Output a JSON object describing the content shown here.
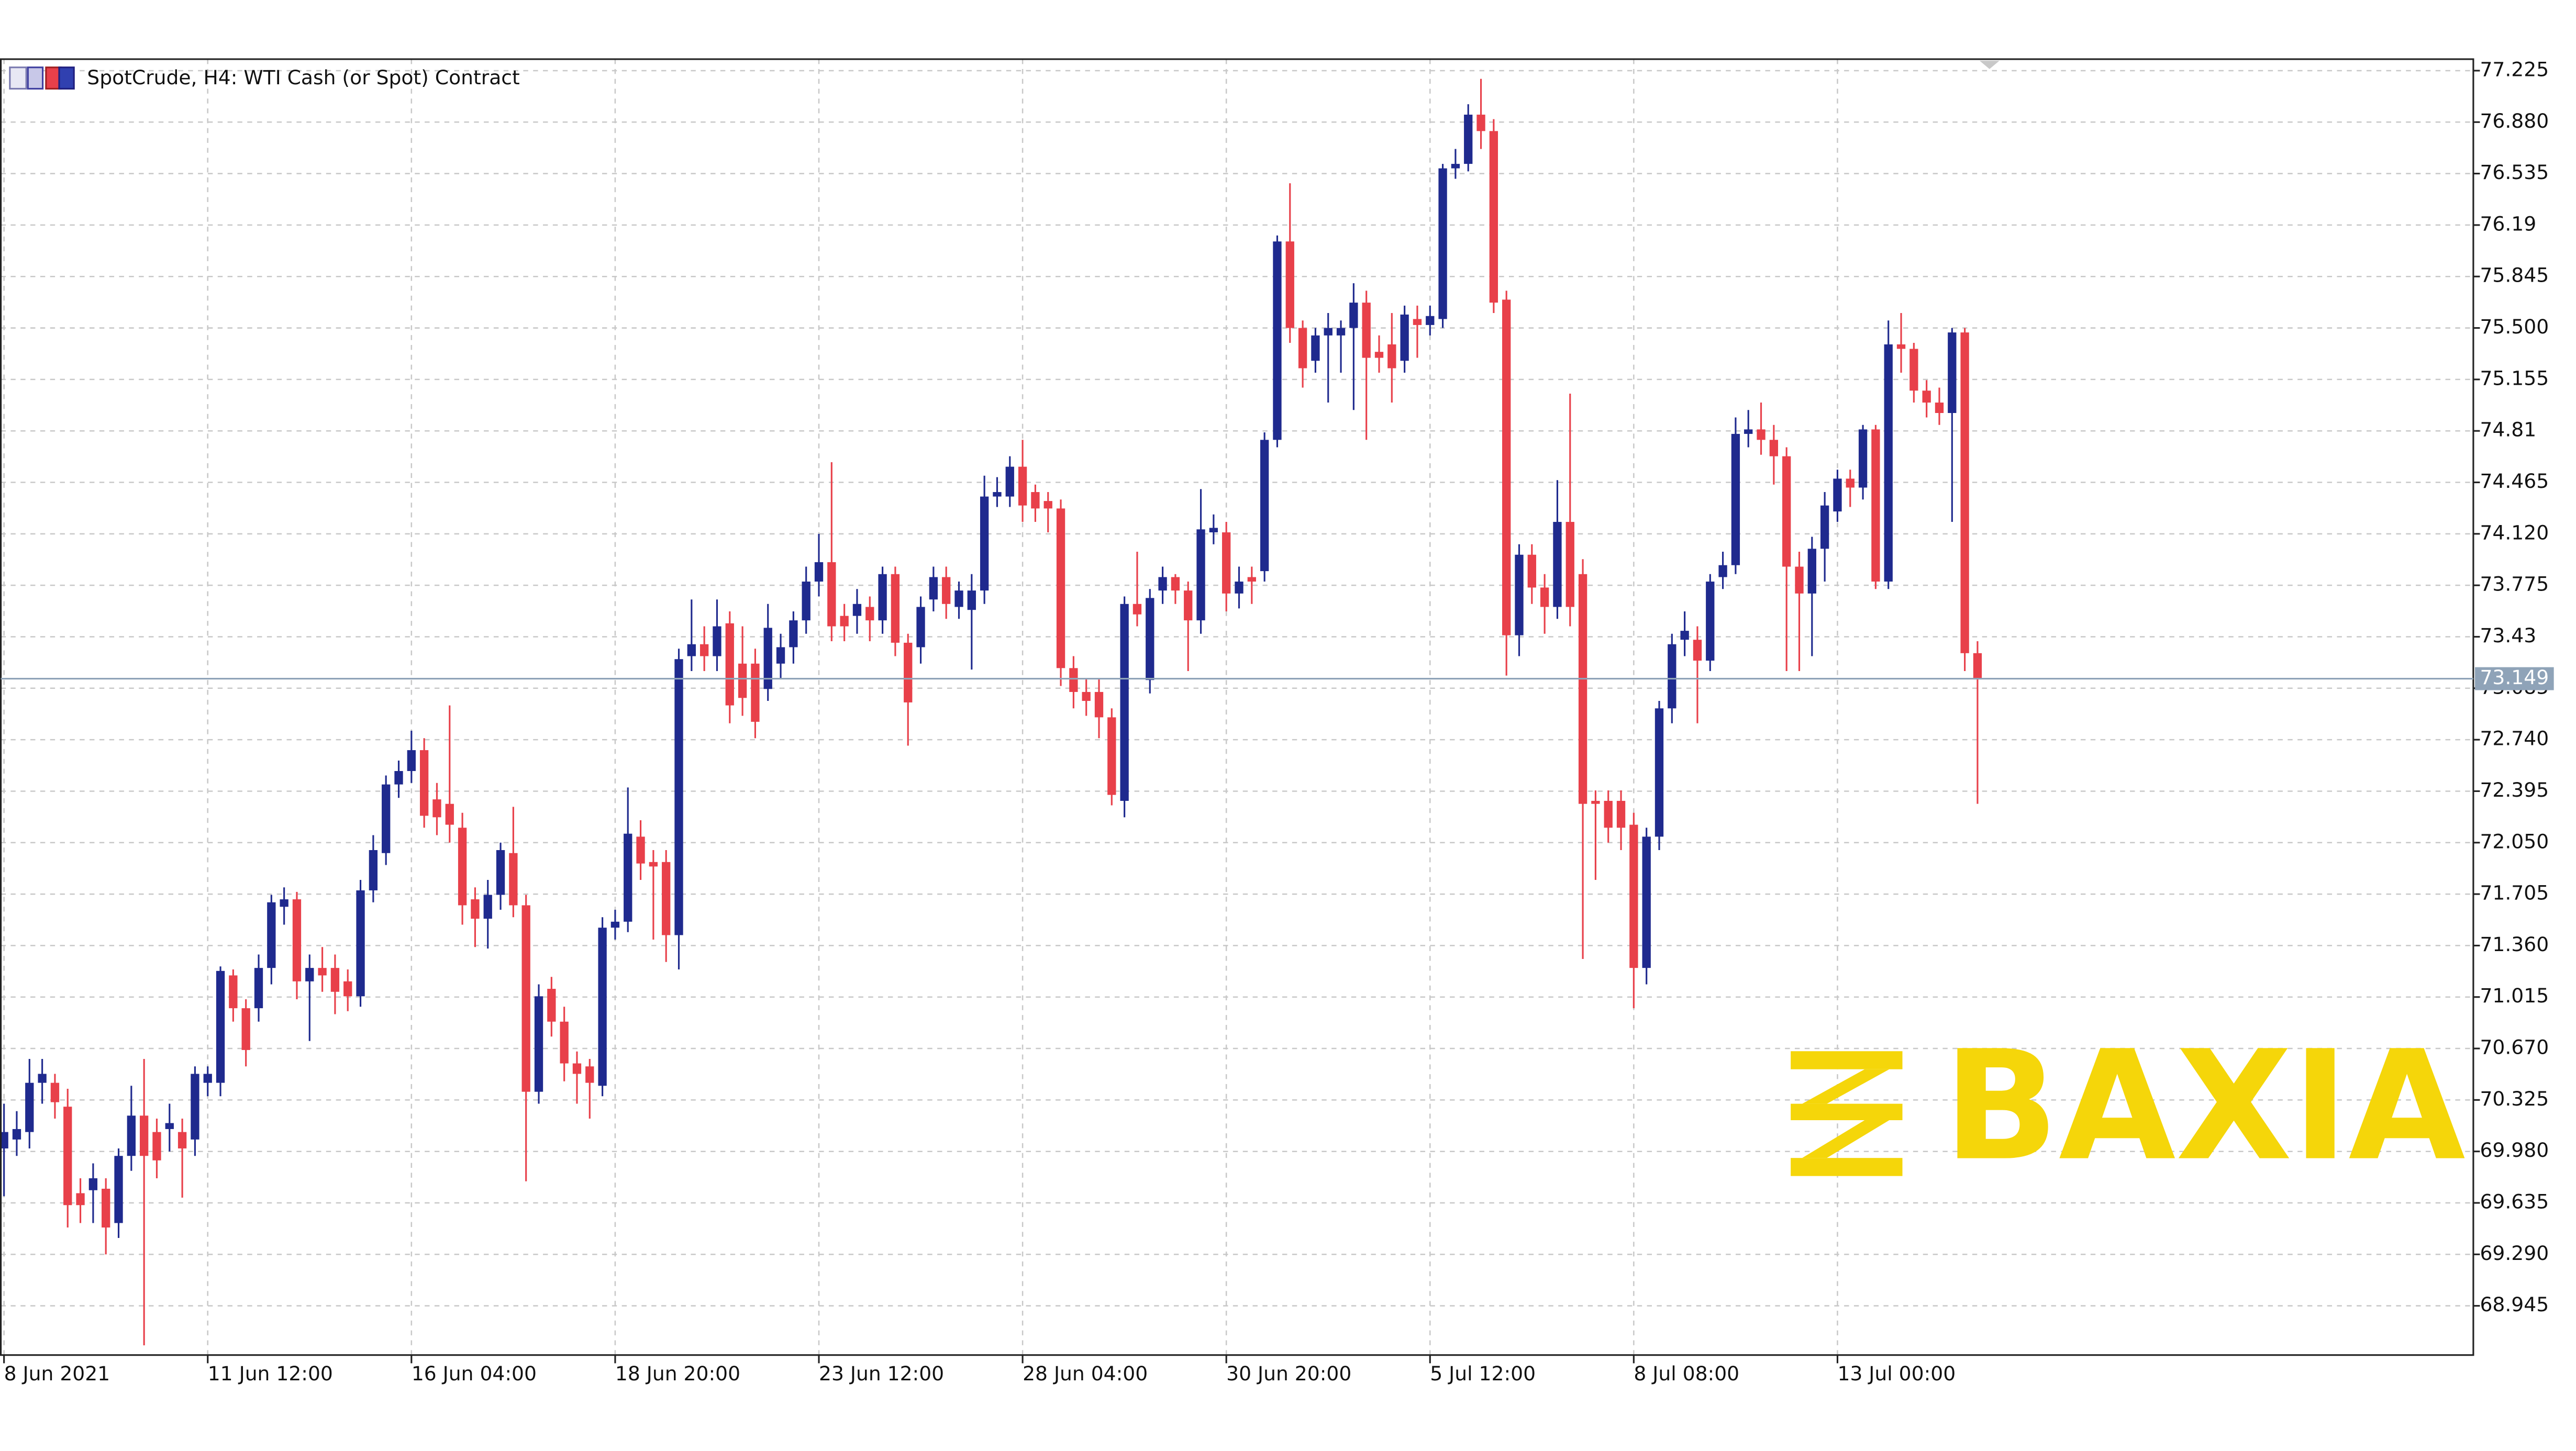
{
  "chart_data": {
    "type": "candlestick",
    "title": "SpotCrude, H4:  WTI Cash (or Spot) Contract",
    "watermark": "BAXIA",
    "up_color": "#1f2a8e",
    "down_color": "#e8404a",
    "grid": true,
    "current_price": 73.149,
    "xlim": [
      -0.25,
      193.94
    ],
    "xticks": [
      {
        "value": 0,
        "label": "8 Jun 2021"
      },
      {
        "value": 16,
        "label": "11 Jun 12:00"
      },
      {
        "value": 32,
        "label": "16 Jun 04:00"
      },
      {
        "value": 48,
        "label": "18 Jun 20:00"
      },
      {
        "value": 64,
        "label": "23 Jun 12:00"
      },
      {
        "value": 80,
        "label": "28 Jun 04:00"
      },
      {
        "value": 96,
        "label": "30 Jun 20:00"
      },
      {
        "value": 112,
        "label": "5 Jul 12:00"
      },
      {
        "value": 128,
        "label": "8 Jul 08:00"
      },
      {
        "value": 144,
        "label": "13 Jul 00:00"
      }
    ],
    "ylim": [
      68.615,
      77.302
    ],
    "yticks": [
      77.225,
      {
        "value": 76.88,
        "label": "76.880"
      },
      76.535,
      76.19,
      75.845,
      {
        "value": 75.5,
        "label": "75.500"
      },
      75.155,
      74.81,
      74.465,
      {
        "value": 74.12,
        "label": "74.120"
      },
      73.775,
      73.43,
      73.085,
      {
        "value": 72.74,
        "label": "72.740"
      },
      72.395,
      {
        "value": 72.05,
        "label": "72.050"
      },
      71.705,
      {
        "value": 71.36,
        "label": "71.360"
      },
      71.015,
      {
        "value": 70.67,
        "label": "70.670"
      },
      70.325,
      {
        "value": 69.98,
        "label": "69.980"
      },
      69.635,
      {
        "value": 69.29,
        "label": "69.290"
      },
      68.945
    ],
    "candles": [
      [
        70.0,
        70.3,
        69.68,
        70.11
      ],
      [
        70.06,
        70.25,
        69.95,
        70.13
      ],
      [
        70.11,
        70.6,
        70.0,
        70.44
      ],
      [
        70.44,
        70.6,
        70.3,
        70.5
      ],
      [
        70.44,
        70.5,
        70.2,
        70.31
      ],
      [
        70.28,
        70.4,
        69.47,
        69.62
      ],
      [
        69.7,
        69.8,
        69.5,
        69.62
      ],
      [
        69.72,
        69.9,
        69.5,
        69.8
      ],
      [
        69.73,
        69.8,
        69.29,
        69.47
      ],
      [
        69.5,
        70.0,
        69.4,
        69.95
      ],
      [
        69.95,
        70.42,
        69.85,
        70.22
      ],
      [
        70.22,
        70.6,
        68.68,
        69.95
      ],
      [
        70.11,
        70.2,
        69.8,
        69.92
      ],
      [
        70.13,
        70.3,
        69.98,
        70.17
      ],
      [
        70.11,
        70.2,
        69.67,
        70.0
      ],
      [
        70.06,
        70.55,
        69.95,
        70.5
      ],
      [
        70.44,
        70.55,
        70.35,
        70.5
      ],
      [
        70.44,
        71.22,
        70.35,
        71.19
      ],
      [
        71.16,
        71.2,
        70.85,
        70.94
      ],
      [
        70.94,
        71.0,
        70.55,
        70.66
      ],
      [
        70.94,
        71.3,
        70.85,
        71.21
      ],
      [
        71.21,
        71.7,
        71.1,
        71.65
      ],
      [
        71.62,
        71.75,
        71.5,
        71.67
      ],
      [
        71.67,
        71.72,
        71.0,
        71.12
      ],
      [
        71.12,
        71.3,
        70.72,
        71.21
      ],
      [
        71.21,
        71.35,
        71.05,
        71.16
      ],
      [
        71.21,
        71.3,
        70.9,
        71.05
      ],
      [
        71.12,
        71.2,
        70.92,
        71.02
      ],
      [
        71.02,
        71.8,
        70.95,
        71.73
      ],
      [
        71.73,
        72.1,
        71.65,
        72.0
      ],
      [
        71.98,
        72.5,
        71.9,
        72.44
      ],
      [
        72.44,
        72.6,
        72.35,
        72.53
      ],
      [
        72.53,
        72.8,
        72.45,
        72.67
      ],
      [
        72.67,
        72.75,
        72.15,
        72.23
      ],
      [
        72.34,
        72.45,
        72.1,
        72.22
      ],
      [
        72.31,
        72.97,
        72.05,
        72.17
      ],
      [
        72.15,
        72.25,
        71.5,
        71.63
      ],
      [
        71.67,
        71.75,
        71.35,
        71.54
      ],
      [
        71.54,
        71.8,
        71.34,
        71.7
      ],
      [
        71.7,
        72.05,
        71.6,
        72.0
      ],
      [
        71.98,
        72.29,
        71.55,
        71.63
      ],
      [
        71.63,
        71.7,
        69.78,
        70.38
      ],
      [
        70.38,
        71.1,
        70.3,
        71.02
      ],
      [
        71.07,
        71.15,
        70.75,
        70.85
      ],
      [
        70.85,
        70.95,
        70.45,
        70.57
      ],
      [
        70.57,
        70.65,
        70.3,
        70.5
      ],
      [
        70.55,
        70.6,
        70.2,
        70.44
      ],
      [
        70.42,
        71.55,
        70.35,
        71.48
      ],
      [
        71.48,
        71.6,
        71.4,
        71.52
      ],
      [
        71.52,
        72.42,
        71.45,
        72.11
      ],
      [
        72.09,
        72.2,
        71.8,
        71.91
      ],
      [
        71.92,
        72.0,
        71.4,
        71.89
      ],
      [
        71.92,
        72.0,
        71.25,
        71.43
      ],
      [
        71.43,
        73.35,
        71.2,
        73.28
      ],
      [
        73.3,
        73.68,
        73.2,
        73.38
      ],
      [
        73.38,
        73.5,
        73.2,
        73.3
      ],
      [
        73.3,
        73.68,
        73.2,
        73.5
      ],
      [
        73.52,
        73.6,
        72.85,
        72.97
      ],
      [
        73.25,
        73.5,
        72.9,
        73.02
      ],
      [
        73.25,
        73.35,
        72.75,
        72.86
      ],
      [
        73.08,
        73.65,
        73.0,
        73.49
      ],
      [
        73.25,
        73.45,
        73.15,
        73.36
      ],
      [
        73.36,
        73.6,
        73.25,
        73.54
      ],
      [
        73.54,
        73.9,
        73.45,
        73.8
      ],
      [
        73.8,
        74.12,
        73.7,
        73.93
      ],
      [
        73.93,
        74.6,
        73.4,
        73.5
      ],
      [
        73.57,
        73.65,
        73.4,
        73.5
      ],
      [
        73.57,
        73.75,
        73.45,
        73.65
      ],
      [
        73.63,
        73.7,
        73.4,
        73.54
      ],
      [
        73.54,
        73.9,
        73.45,
        73.85
      ],
      [
        73.85,
        73.9,
        73.3,
        73.39
      ],
      [
        73.39,
        73.45,
        72.7,
        72.99
      ],
      [
        73.36,
        73.7,
        73.25,
        73.63
      ],
      [
        73.68,
        73.9,
        73.6,
        73.83
      ],
      [
        73.83,
        73.9,
        73.55,
        73.65
      ],
      [
        73.63,
        73.8,
        73.55,
        73.74
      ],
      [
        73.61,
        73.85,
        73.21,
        73.74
      ],
      [
        73.74,
        74.51,
        73.65,
        74.37
      ],
      [
        74.37,
        74.5,
        74.3,
        74.4
      ],
      [
        74.37,
        74.64,
        74.3,
        74.57
      ],
      [
        74.57,
        74.75,
        74.2,
        74.31
      ],
      [
        74.4,
        74.45,
        74.2,
        74.29
      ],
      [
        74.34,
        74.4,
        74.13,
        74.29
      ],
      [
        74.29,
        74.35,
        73.1,
        73.22
      ],
      [
        73.22,
        73.3,
        72.95,
        73.06
      ],
      [
        73.06,
        73.15,
        72.9,
        73.0
      ],
      [
        73.06,
        73.15,
        72.75,
        72.89
      ],
      [
        72.89,
        72.95,
        72.3,
        72.37
      ],
      [
        72.33,
        73.7,
        72.22,
        73.65
      ],
      [
        73.65,
        74.0,
        73.5,
        73.58
      ],
      [
        73.14,
        73.75,
        73.05,
        73.69
      ],
      [
        73.74,
        73.9,
        73.65,
        73.83
      ],
      [
        73.83,
        73.85,
        73.65,
        73.74
      ],
      [
        73.74,
        73.8,
        73.2,
        73.54
      ],
      [
        73.54,
        74.42,
        73.45,
        74.15
      ],
      [
        74.13,
        74.25,
        74.05,
        74.16
      ],
      [
        74.13,
        74.2,
        73.6,
        73.72
      ],
      [
        73.72,
        73.9,
        73.62,
        73.8
      ],
      [
        73.83,
        73.9,
        73.65,
        73.8
      ],
      [
        73.87,
        74.8,
        73.8,
        74.75
      ],
      [
        74.75,
        76.12,
        74.7,
        76.08
      ],
      [
        76.08,
        76.47,
        75.4,
        75.5
      ],
      [
        75.5,
        75.55,
        75.1,
        75.23
      ],
      [
        75.28,
        75.5,
        75.2,
        75.45
      ],
      [
        75.45,
        75.6,
        75.0,
        75.5
      ],
      [
        75.45,
        75.55,
        75.2,
        75.5
      ],
      [
        75.5,
        75.8,
        74.95,
        75.67
      ],
      [
        75.67,
        75.75,
        74.75,
        75.3
      ],
      [
        75.34,
        75.45,
        75.2,
        75.3
      ],
      [
        75.39,
        75.6,
        75.0,
        75.23
      ],
      [
        75.28,
        75.65,
        75.2,
        75.59
      ],
      [
        75.56,
        75.65,
        75.3,
        75.52
      ],
      [
        75.52,
        75.65,
        75.45,
        75.58
      ],
      [
        75.56,
        76.6,
        75.5,
        76.57
      ],
      [
        76.57,
        76.7,
        76.5,
        76.6
      ],
      [
        76.6,
        77.0,
        76.55,
        76.93
      ],
      [
        76.93,
        77.17,
        76.7,
        76.82
      ],
      [
        76.82,
        76.9,
        75.6,
        75.67
      ],
      [
        75.69,
        75.75,
        73.17,
        73.44
      ],
      [
        73.44,
        74.05,
        73.3,
        73.98
      ],
      [
        73.98,
        74.05,
        73.65,
        73.76
      ],
      [
        73.76,
        73.85,
        73.45,
        73.63
      ],
      [
        73.63,
        74.48,
        73.55,
        74.2
      ],
      [
        74.2,
        75.06,
        73.5,
        73.63
      ],
      [
        73.85,
        73.95,
        71.27,
        72.31
      ],
      [
        72.33,
        72.4,
        71.8,
        72.31
      ],
      [
        72.33,
        72.4,
        72.05,
        72.15
      ],
      [
        72.33,
        72.4,
        72.0,
        72.15
      ],
      [
        72.17,
        72.25,
        70.94,
        71.21
      ],
      [
        71.21,
        72.15,
        71.1,
        72.09
      ],
      [
        72.09,
        73.0,
        72.0,
        72.95
      ],
      [
        72.95,
        73.45,
        72.85,
        73.38
      ],
      [
        73.41,
        73.6,
        73.3,
        73.47
      ],
      [
        73.41,
        73.5,
        72.85,
        73.27
      ],
      [
        73.27,
        73.85,
        73.2,
        73.8
      ],
      [
        73.83,
        74.0,
        73.75,
        73.91
      ],
      [
        73.91,
        74.9,
        73.85,
        74.79
      ],
      [
        74.79,
        74.95,
        74.7,
        74.82
      ],
      [
        74.82,
        75.0,
        74.65,
        74.75
      ],
      [
        74.75,
        74.85,
        74.45,
        74.64
      ],
      [
        74.64,
        74.7,
        73.2,
        73.9
      ],
      [
        73.9,
        74.0,
        73.2,
        73.72
      ],
      [
        73.72,
        74.1,
        73.3,
        74.02
      ],
      [
        74.02,
        74.4,
        73.8,
        74.31
      ],
      [
        74.27,
        74.55,
        74.2,
        74.49
      ],
      [
        74.49,
        74.55,
        74.3,
        74.43
      ],
      [
        74.43,
        74.85,
        74.35,
        74.82
      ],
      [
        74.82,
        74.85,
        73.75,
        73.8
      ],
      [
        73.8,
        75.55,
        73.75,
        75.39
      ],
      [
        75.39,
        75.6,
        75.2,
        75.36
      ],
      [
        75.36,
        75.4,
        75.0,
        75.08
      ],
      [
        75.08,
        75.15,
        74.9,
        75.0
      ],
      [
        75.0,
        75.1,
        74.85,
        74.93
      ],
      [
        74.93,
        75.5,
        74.2,
        75.47
      ],
      [
        75.47,
        75.5,
        73.2,
        73.32
      ],
      [
        73.32,
        73.4,
        72.31,
        73.149
      ]
    ]
  }
}
